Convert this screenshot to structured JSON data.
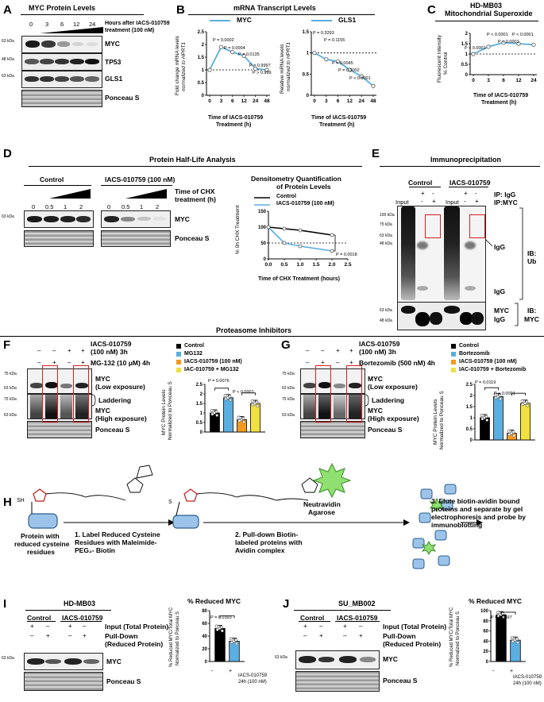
{
  "panelA": {
    "letter": "A",
    "title": "MYC Protein Levels",
    "timepoints": [
      "0",
      "3",
      "6",
      "12",
      "24"
    ],
    "treatment_line1": "Hours after IACS-010759",
    "treatment_line2": "treatment (100 nM)",
    "kda": [
      "63 kDa",
      "48 kDa",
      "63 kDa"
    ],
    "rows": [
      "MYC",
      "TP53",
      "GLS1",
      "Ponceau S"
    ]
  },
  "panelB": {
    "letter": "B",
    "title": "mRNA Transcript Levels",
    "myc": {
      "legend": "MYC",
      "ylabel_line1": "Fold change mRNA levels",
      "ylabel_line2": "normalized to HPRT1",
      "xlabel_line1": "Time of IACS-010759",
      "xlabel_line2": "Treatment (h)",
      "pvalues": [
        "P = 0.0002",
        "P = 0.0004",
        "P = 0.0135",
        "P = 0.9997",
        "P > 0.999"
      ]
    },
    "gls1": {
      "legend": "GLS1",
      "ylabel_line1": "Relative mRNA levels",
      "ylabel_line2": "normalized to HPRT1",
      "xlabel_line1": "Time of IACS-010759",
      "xlabel_line2": "Treatment (h)",
      "pvalues": [
        "P = 0.3293",
        "P = 0.1155",
        "P = 0.0045",
        "P = 0.0002",
        "P < 0.0001"
      ]
    }
  },
  "panelC": {
    "letter": "C",
    "title_line1": "HD-MB03",
    "title_line2": "Mitochondrial Superoxide",
    "ylabel_line1": "Fluorescent Intensity",
    "ylabel_line2": "% Control",
    "xlabel_line1": "Time of IACS-010759",
    "xlabel_line2": "Treatment (h)",
    "pvalues": [
      "P < 0.0001",
      "P < 0.0001",
      "P < 0.0001",
      "P < 0.0001"
    ]
  },
  "panelD": {
    "letter": "D",
    "title": "Protein Half-Life Analysis",
    "control": "Control",
    "treated": "IACS-010759 (100 nM)",
    "timepoints": [
      "0",
      "0.5",
      "1",
      "2"
    ],
    "chx_line1": "Time of CHX",
    "chx_line2": "treatment (h)",
    "kda": "63 kDa",
    "rows": [
      "MYC",
      "Ponceau S"
    ],
    "quant_title_line1": "Densitometry Quantification",
    "quant_title_line2": "of Protein Levels",
    "legend_control": "Control",
    "legend_treated": "IACS-010759 (100 nM)",
    "ylabel": "% 0h CHX Treatment",
    "xlabel": "Time of CHX Treatment (hours)",
    "pvalue": "P = 0.0018"
  },
  "panelE": {
    "letter": "E",
    "title": "Immunoprecipitation",
    "control": "Control",
    "treated": "IACS-010759",
    "input": "Input",
    "ip_igg": "IP: IgG",
    "ip_myc": "IP:MYC",
    "plus": "+",
    "minus": "-",
    "kda": [
      "100 kDa",
      "75 kDa",
      "63 kDa",
      "48 kDa",
      "63 kDa",
      "48 kDa"
    ],
    "igg": "IgG",
    "ib_ub_line1": "IB:",
    "ib_ub_line2": "Ub",
    "myc": "MYC",
    "ib_myc_line1": "IB:",
    "ib_myc_line2": "MYC"
  },
  "proteasome_title": "Proteasome Inhibitors",
  "panelF": {
    "letter": "F",
    "treat1": "IACS-010759",
    "treat1b": "(100 nM) 3h",
    "treat2": "MG-132 (10 μM) 4h",
    "row1": [
      "–",
      "–",
      "+",
      "+"
    ],
    "row2": [
      "–",
      "+",
      "–",
      "+"
    ],
    "kda": [
      "75 kDa",
      "63 kDa",
      "75 kDa",
      "63 kDa"
    ],
    "myc_low_1": "MYC",
    "myc_low_2": "(Low exposure)",
    "laddering": "Laddering",
    "myc_high_1": "MYC",
    "myc_high_2": "(High exposure)",
    "ponceau": "Ponceau S",
    "legend": [
      "Control",
      "MG132",
      "IACS-010759 (100 nM)",
      "IAC-010759 + MG132"
    ],
    "ylabel_line1": "MYC Protein Levels",
    "ylabel_line2": "Normalized to Ponceau S",
    "p1": "P = 0.0076",
    "p2": "P < 0.0001"
  },
  "panelG": {
    "letter": "G",
    "treat1": "IACS-010759",
    "treat1b": "(100 nM) 3h",
    "treat2": "Bortezomib (500 nM) 4h",
    "row1": [
      "–",
      "–",
      "+",
      "+"
    ],
    "row2": [
      "–",
      "+",
      "–",
      "+"
    ],
    "kda": [
      "75 kDa",
      "63 kDa",
      "75 kDa",
      "63 kDa"
    ],
    "myc_low_1": "MYC",
    "myc_low_2": "(Low exposure)",
    "laddering": "Laddering",
    "myc_high_1": "MYC",
    "myc_high_2": "(High exposure)",
    "ponceau": "Ponceau S",
    "legend": [
      "Control",
      "Bortezomib",
      "IACS-010759 (100 nM)",
      "IAC-010759 + Bortezomib"
    ],
    "ylabel_line1": "MYC Protein Levels",
    "ylabel_line2": "Normalized to Ponceau S",
    "p1": "P = 0.0119",
    "p2": "P < 0.0001"
  },
  "panelH": {
    "letter": "H",
    "sh": "SH",
    "s1": "S",
    "protein_line1": "Protein with",
    "protein_line2": "reduced cysteine",
    "protein_line3": "residues",
    "step1_line1": "1. Label Reduced Cysteine",
    "step1_line2": "Residues with Maleimide-",
    "step1_line3": "PEG₂- Biotin",
    "neutravidin_line1": "Neutravidin",
    "neutravidin_line2": "Agarose",
    "step2_line1": "2. Pull-down Biotin-",
    "step2_line2": "labeled proteins with",
    "step2_line3": "Avidin complex",
    "step3_line1": "3. Elute biotin-avidin bound",
    "step3_line2": "proteins and separate by gel",
    "step3_line3": "electrophoresis and probe by",
    "step3_line4": "immunoblotting"
  },
  "panelI": {
    "letter": "I",
    "title": "HD-MB03",
    "control": "Control",
    "treated": "IACS-010759",
    "input_label": "Input (Total Protein)",
    "pulldown_line1": "Pull-Down",
    "pulldown_line2": "(Reduced Protein)",
    "row1": [
      "+",
      "–",
      "+",
      "–"
    ],
    "row2": [
      "–",
      "+",
      "–",
      "+"
    ],
    "kda": "63 kDa",
    "myc": "MYC",
    "ponceau": "Ponceau S",
    "chart_title": "% Reduced MYC",
    "ylabel_line1": "% Reduced MYC/Total MYC",
    "ylabel_line2": "Normalized to Ponceau S",
    "pvalue": "P = 0.0393",
    "xlab": [
      "-",
      "+"
    ],
    "treat_line1": "IACS-010759",
    "treat_line2": "24h (100 nM)"
  },
  "panelJ": {
    "letter": "J",
    "title": "SU_MB002",
    "control": "Control",
    "treated": "IACS-010759",
    "input_label": "Input (Total Protein)",
    "pulldown_line1": "Pull-Down",
    "pulldown_line2": "(Reduced Protein)",
    "row1": [
      "+",
      "–",
      "+",
      "–"
    ],
    "row2": [
      "–",
      "+",
      "–",
      "+"
    ],
    "kda": "63 kDa",
    "myc": "MYC",
    "ponceau": "Ponceau S",
    "chart_title": "% Reduced MYC",
    "ylabel_line1": "% Reduced MYC/Total MYC",
    "ylabel_line2": "Normalized to Ponceau S",
    "pvalue": "P = 0.0497",
    "xlab": [
      "-",
      "+"
    ],
    "treat_line1": "IACS-010759",
    "treat_line2": "24h (100 nM)"
  },
  "colors": {
    "blue": "#5aaee0",
    "black": "#000000",
    "orange": "#f39a1e",
    "yellow": "#f0e040",
    "red": "#d62020"
  },
  "chart_data": [
    {
      "id": "B-MYC",
      "type": "line",
      "x": [
        0,
        3,
        6,
        12,
        24,
        48
      ],
      "values": [
        1.0,
        1.9,
        1.7,
        1.55,
        1.05,
        1.0
      ],
      "ylim": [
        0,
        2.5
      ],
      "yticks": [
        0,
        0.5,
        1,
        1.5,
        2,
        2.5
      ],
      "xticks": [
        "0",
        "3",
        "6",
        "12",
        "24",
        "48"
      ]
    },
    {
      "id": "B-GLS1",
      "type": "line",
      "x": [
        0,
        3,
        6,
        12,
        24,
        48
      ],
      "values": [
        1.0,
        0.85,
        0.8,
        0.6,
        0.45,
        0.22
      ],
      "ylim": [
        0,
        1.5
      ],
      "yticks": [
        0,
        0.5,
        1,
        1.5
      ],
      "xticks": [
        "0",
        "3",
        "6",
        "12",
        "24",
        "48"
      ]
    },
    {
      "id": "C",
      "type": "line",
      "x": [
        0,
        3,
        6,
        12,
        24
      ],
      "values": [
        1.0,
        1.35,
        1.55,
        1.5,
        1.45
      ],
      "ylim": [
        0,
        2
      ],
      "yticks": [
        0,
        0.5,
        1,
        1.5,
        2
      ],
      "xticks": [
        "0",
        "3",
        "6",
        "12",
        "24"
      ]
    },
    {
      "id": "D",
      "type": "line",
      "x": [
        0,
        0.5,
        1,
        2
      ],
      "series": [
        {
          "name": "Control",
          "values": [
            100,
            95,
            90,
            75
          ]
        },
        {
          "name": "IACS-010759 (100 nM)",
          "values": [
            100,
            50,
            40,
            25
          ]
        }
      ],
      "ylim": [
        0,
        150
      ],
      "xlim": [
        0,
        2.5
      ],
      "yticks": [
        0,
        50,
        100,
        150
      ],
      "xticks": [
        "0.0",
        "0.5",
        "1.0",
        "1.5",
        "2.0",
        "2.5"
      ]
    },
    {
      "id": "F",
      "type": "bar",
      "categories": [
        "Control",
        "MG132",
        "IACS-010759 (100 nM)",
        "IAC-010759 + MG132"
      ],
      "values": [
        1.0,
        1.8,
        0.65,
        1.5
      ],
      "ylim": [
        0,
        2.5
      ],
      "yticks": [
        0,
        0.5,
        1,
        1.5,
        2,
        2.5
      ]
    },
    {
      "id": "G",
      "type": "bar",
      "categories": [
        "Control",
        "Bortezomib",
        "IACS-010759 (100 nM)",
        "IAC-010759 + Bortezomib"
      ],
      "values": [
        1.0,
        1.95,
        0.3,
        1.65
      ],
      "ylim": [
        0,
        2.5
      ],
      "yticks": [
        0,
        0.5,
        1,
        1.5,
        2,
        2.5
      ]
    },
    {
      "id": "I",
      "type": "bar",
      "categories": [
        "-",
        "+"
      ],
      "values": [
        52,
        32
      ],
      "ylim": [
        0,
        80
      ],
      "yticks": [
        0,
        20,
        40,
        60,
        80
      ]
    },
    {
      "id": "J",
      "type": "bar",
      "categories": [
        "-",
        "+"
      ],
      "values": [
        92,
        42
      ],
      "ylim": [
        0,
        100
      ],
      "yticks": [
        0,
        20,
        40,
        60,
        80,
        100
      ]
    }
  ]
}
